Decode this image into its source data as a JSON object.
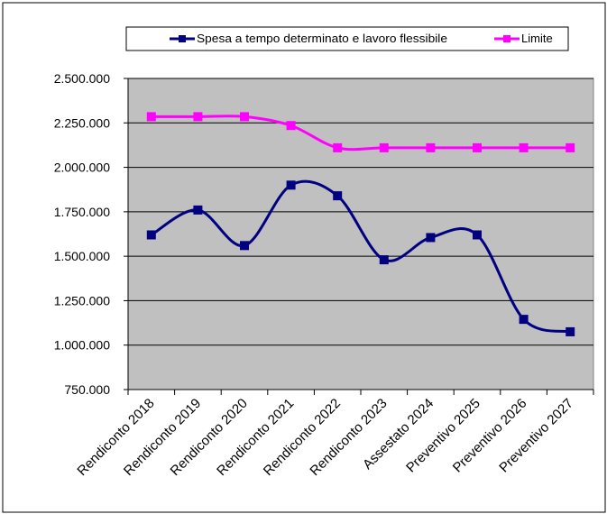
{
  "chart_data": {
    "type": "line",
    "categories": [
      "Rendiconto 2018",
      "Rendiconto 2019",
      "Rendiconto 2020",
      "Rendiconto 2021",
      "Rendiconto 2022",
      "Rendiconto 2023",
      "Assestato 2024",
      "Preventivo 2025",
      "Preventivo 2026",
      "Preventivo 2027"
    ],
    "series": [
      {
        "name": "Spesa a tempo determinato e lavoro flessibile",
        "color": "#000080",
        "values": [
          1620000,
          1760000,
          1560000,
          1900000,
          1840000,
          1480000,
          1605000,
          1620000,
          1145000,
          1075000
        ]
      },
      {
        "name": "Limite",
        "color": "#ff00ff",
        "values": [
          2285000,
          2285000,
          2285000,
          2235000,
          2110000,
          2110000,
          2110000,
          2110000,
          2110000,
          2110000
        ]
      }
    ],
    "yticks": [
      "750.000",
      "1.000.000",
      "1.250.000",
      "1.500.000",
      "1.750.000",
      "2.000.000",
      "2.250.000",
      "2.500.000"
    ],
    "ylim": [
      750000,
      2500000
    ],
    "grid": true,
    "plot_background": "#c0c0c0",
    "legend_position": "top"
  }
}
